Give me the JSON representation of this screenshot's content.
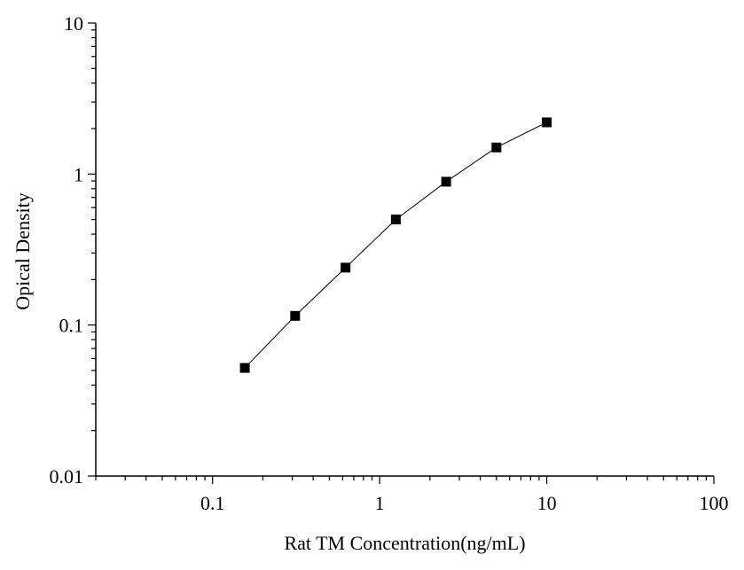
{
  "chart_data": {
    "type": "scatter",
    "xlabel": "Rat TM Concentration(ng/mL)",
    "ylabel": "Opical Density",
    "x_scale": "log",
    "y_scale": "log",
    "xlim": [
      0.02,
      100
    ],
    "ylim": [
      0.01,
      10
    ],
    "x_ticks": [
      0.1,
      1,
      10,
      100
    ],
    "x_tick_labels": [
      "0.1",
      "1",
      "10",
      "100"
    ],
    "y_ticks": [
      0.01,
      0.1,
      1,
      10
    ],
    "y_tick_labels": [
      "0.01",
      "0.1",
      "1",
      "10"
    ],
    "grid": false,
    "marker": "square",
    "connect_points": true,
    "series": [
      {
        "x": [
          0.156,
          0.312,
          0.625,
          1.25,
          2.5,
          5,
          10
        ],
        "y": [
          0.052,
          0.115,
          0.24,
          0.5,
          0.89,
          1.5,
          2.2
        ]
      }
    ],
    "colors": {
      "line": "#000000",
      "marker": "#000000"
    }
  }
}
